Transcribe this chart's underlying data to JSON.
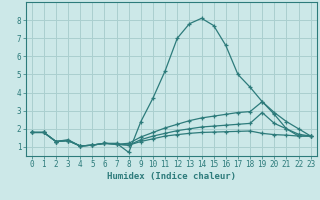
{
  "xlabel": "Humidex (Indice chaleur)",
  "background_color": "#cce8e8",
  "grid_color": "#aacfcf",
  "line_color": "#2d7b7b",
  "xlim": [
    -0.5,
    23.5
  ],
  "ylim": [
    0.5,
    9.0
  ],
  "x_ticks": [
    0,
    1,
    2,
    3,
    4,
    5,
    6,
    7,
    8,
    9,
    10,
    11,
    12,
    13,
    14,
    15,
    16,
    17,
    18,
    19,
    20,
    21,
    22,
    23
  ],
  "y_ticks": [
    1,
    2,
    3,
    4,
    5,
    6,
    7,
    8
  ],
  "series": [
    {
      "x": [
        0,
        1,
        2,
        3,
        4,
        5,
        6,
        7,
        8,
        9,
        10,
        11,
        12,
        13,
        14,
        15,
        16,
        17,
        18,
        19,
        20,
        21,
        22,
        23
      ],
      "y": [
        1.8,
        1.8,
        1.3,
        1.4,
        1.05,
        1.1,
        1.2,
        1.2,
        0.7,
        2.4,
        3.7,
        5.2,
        7.0,
        7.8,
        8.1,
        7.7,
        6.6,
        5.0,
        4.3,
        3.5,
        2.8,
        2.0,
        1.6,
        1.6
      ]
    },
    {
      "x": [
        0,
        1,
        2,
        3,
        4,
        5,
        6,
        7,
        8,
        9,
        10,
        11,
        12,
        13,
        14,
        15,
        16,
        17,
        18,
        19,
        20,
        21,
        22,
        23
      ],
      "y": [
        1.8,
        1.8,
        1.3,
        1.35,
        1.05,
        1.1,
        1.2,
        1.15,
        1.2,
        1.55,
        1.8,
        2.05,
        2.25,
        2.45,
        2.6,
        2.7,
        2.8,
        2.9,
        2.95,
        3.5,
        2.9,
        2.4,
        2.0,
        1.6
      ]
    },
    {
      "x": [
        0,
        1,
        2,
        3,
        4,
        5,
        6,
        7,
        8,
        9,
        10,
        11,
        12,
        13,
        14,
        15,
        16,
        17,
        18,
        19,
        20,
        21,
        22,
        23
      ],
      "y": [
        1.8,
        1.8,
        1.3,
        1.35,
        1.05,
        1.1,
        1.2,
        1.15,
        1.1,
        1.4,
        1.6,
        1.75,
        1.9,
        2.0,
        2.1,
        2.15,
        2.2,
        2.25,
        2.3,
        2.9,
        2.3,
        2.0,
        1.7,
        1.6
      ]
    },
    {
      "x": [
        0,
        1,
        2,
        3,
        4,
        5,
        6,
        7,
        8,
        9,
        10,
        11,
        12,
        13,
        14,
        15,
        16,
        17,
        18,
        19,
        20,
        21,
        22,
        23
      ],
      "y": [
        1.8,
        1.8,
        1.3,
        1.35,
        1.05,
        1.1,
        1.2,
        1.15,
        1.1,
        1.3,
        1.45,
        1.6,
        1.68,
        1.75,
        1.8,
        1.82,
        1.84,
        1.86,
        1.88,
        1.75,
        1.68,
        1.65,
        1.6,
        1.6
      ]
    }
  ]
}
